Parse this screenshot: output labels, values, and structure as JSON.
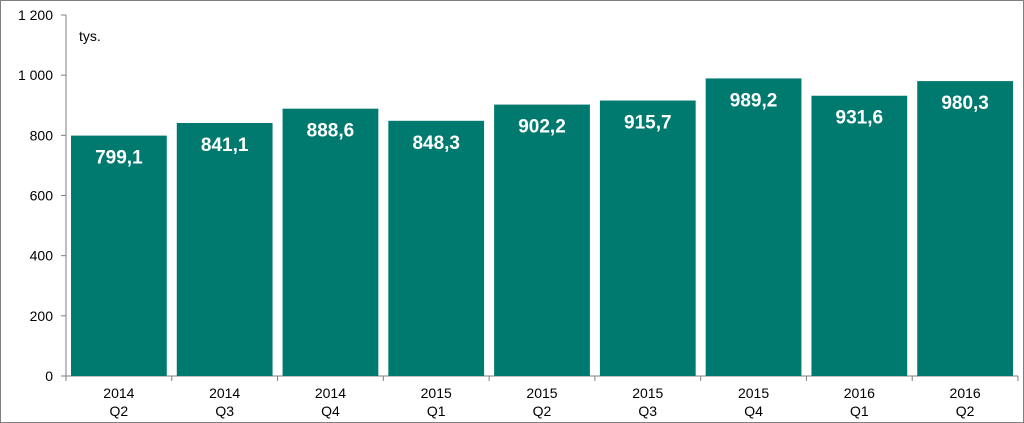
{
  "chart_data": {
    "type": "bar",
    "unit_label": "tys.",
    "categories": [
      [
        "2014",
        "Q2"
      ],
      [
        "2014",
        "Q3"
      ],
      [
        "2014",
        "Q4"
      ],
      [
        "2015",
        "Q1"
      ],
      [
        "2015",
        "Q2"
      ],
      [
        "2015",
        "Q3"
      ],
      [
        "2015",
        "Q4"
      ],
      [
        "2016",
        "Q1"
      ],
      [
        "2016",
        "Q2"
      ]
    ],
    "values": [
      799.1,
      841.1,
      888.6,
      848.3,
      902.2,
      915.7,
      989.2,
      931.6,
      980.3
    ],
    "value_labels": [
      "799,1",
      "841,1",
      "888,6",
      "848,3",
      "902,2",
      "915,7",
      "989,2",
      "931,6",
      "980,3"
    ],
    "yticks": [
      0,
      200,
      400,
      600,
      800,
      1000,
      1200
    ],
    "ytick_labels": [
      "0",
      "200",
      "400",
      "600",
      "800",
      "1 000",
      "1 200"
    ],
    "ylim": [
      0,
      1200
    ],
    "grid": false,
    "colors": {
      "bar": "#007a6e",
      "axis": "#7f7f7f"
    }
  }
}
